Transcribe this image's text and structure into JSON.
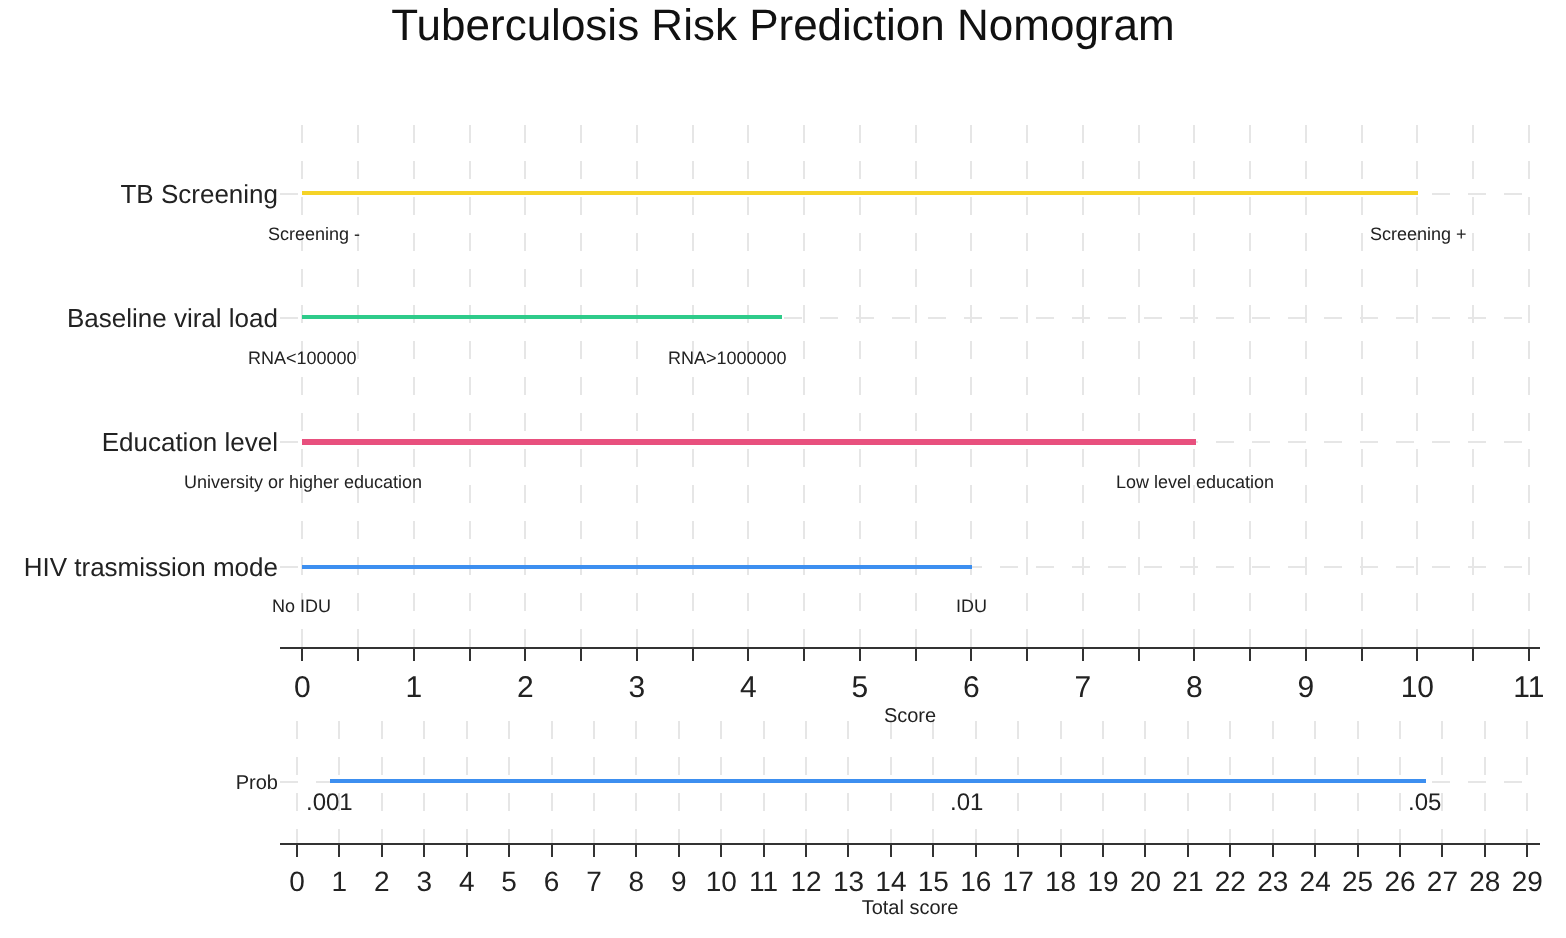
{
  "chart_data": [
    {
      "type": "bar",
      "orientation": "horizontal",
      "title": "Tuberculosis Risk Prediction Nomogram",
      "xlabel": "Score",
      "categories": [
        "TB Screening",
        "Baseline viral load",
        "Education level",
        "HIV trasmission mode"
      ],
      "values": [
        10.0,
        4.3,
        8.02,
        6.0
      ],
      "colors": [
        "#f5d327",
        "#2ecb8a",
        "#e8507e",
        "#3d8ff0"
      ],
      "xlim": [
        -0.2,
        11.1
      ],
      "xticks": [
        0,
        {
          "value": 0.5,
          "label": null
        },
        1,
        {
          "value": 1.5,
          "label": null
        },
        2,
        {
          "value": 2.5,
          "label": null
        },
        3,
        {
          "value": 3.5,
          "label": null
        },
        4,
        {
          "value": 4.5,
          "label": null
        },
        5,
        {
          "value": 5.5,
          "label": null
        },
        6,
        {
          "value": 6.5,
          "label": null
        },
        7,
        {
          "value": 7.5,
          "label": null
        },
        8,
        {
          "value": 8.5,
          "label": null
        },
        9,
        {
          "value": 9.5,
          "label": null
        },
        10,
        {
          "value": 10.5,
          "label": null
        },
        11
      ],
      "annotations": [
        {
          "text": "Screening -",
          "x": 0.1,
          "y": "TB Screening"
        },
        {
          "text": "Screening +",
          "x": 10.0,
          "y": "TB Screening"
        },
        {
          "text": "RNA<100000",
          "x": 0,
          "y": "Baseline viral load"
        },
        {
          "text": "RNA>1000000",
          "x": 3.8,
          "y": "Baseline viral load"
        },
        {
          "text": "University or higher education",
          "x": 0,
          "y": "Education level"
        },
        {
          "text": "Low level education",
          "x": 8.0,
          "y": "Education level"
        },
        {
          "text": "No IDU",
          "x": 0,
          "y": "HIV trasmission mode"
        },
        {
          "text": "IDU",
          "x": 6.0,
          "y": "HIV trasmission mode"
        }
      ],
      "grid": true
    },
    {
      "type": "bar",
      "orientation": "horizontal",
      "xlabel": "Total score",
      "categories": [
        "Prob"
      ],
      "values": [
        25.84
      ],
      "base": [
        0.76
      ],
      "colors": [
        "#3d8ff0"
      ],
      "xlim": [
        -0.4,
        29.3
      ],
      "xticks": [
        0,
        1,
        2,
        3,
        4,
        5,
        6,
        7,
        8,
        9,
        10,
        11,
        12,
        13,
        14,
        15,
        16,
        17,
        18,
        19,
        20,
        21,
        22,
        23,
        24,
        25,
        26,
        27,
        28,
        29
      ],
      "annotations": [
        {
          "text": ".001",
          "x": 0.76,
          "y": "Prob"
        },
        {
          "text": ".01",
          "x": 15.8,
          "y": "Prob"
        },
        {
          "text": ".05",
          "x": 26.6,
          "y": "Prob"
        }
      ],
      "grid": true
    }
  ]
}
